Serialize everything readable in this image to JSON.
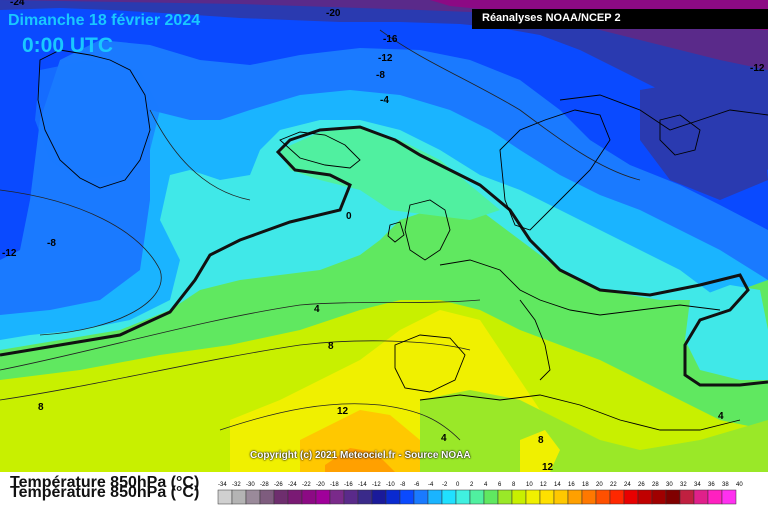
{
  "header": {
    "date": "Dimanche 18 février 2024",
    "time": "0:00 UTC",
    "source": "Réanalyses NOAA/NCEP 2"
  },
  "copyright": "Copyright (c) 2021 Meteociel.fr - Source NOAA",
  "footer": {
    "title": "Température 850hPa (°C)"
  },
  "contour_labels": [
    "-24",
    "-20",
    "-16",
    "-12",
    "-8",
    "-4",
    "-12",
    "-12",
    "-8",
    "0",
    "4",
    "8",
    "8",
    "12",
    "4",
    "8",
    "4",
    "12"
  ],
  "scale": {
    "labels": [
      "-34",
      "-32",
      "-30",
      "-28",
      "-26",
      "-24",
      "-22",
      "-20",
      "-18",
      "-16",
      "-14",
      "-12",
      "-10",
      "-8",
      "-6",
      "-4",
      "-2",
      "0",
      "2",
      "4",
      "6",
      "8",
      "10",
      "12",
      "14",
      "16",
      "18",
      "20",
      "22",
      "24",
      "26",
      "28",
      "30",
      "32",
      "34",
      "36",
      "38",
      "40"
    ],
    "colors": [
      "#d0d0d0",
      "#b4b4b4",
      "#9a8a9a",
      "#7e5c7e",
      "#6e2e6e",
      "#7a1a74",
      "#8c0a84",
      "#a0009a",
      "#7a2a8a",
      "#5a2a8a",
      "#3a2a8a",
      "#1a1a9a",
      "#0a2ad0",
      "#0a4aff",
      "#1a7aff",
      "#1ab4ff",
      "#20e0ff",
      "#40f0e0",
      "#50f0a0",
      "#60e860",
      "#9ae828",
      "#c8f000",
      "#f0f000",
      "#ffe000",
      "#ffc800",
      "#ffa000",
      "#ff7800",
      "#ff5000",
      "#ff2800",
      "#e80000",
      "#c00000",
      "#a00000",
      "#800000",
      "#c02040",
      "#e0208a",
      "#ff20c0",
      "#ff30f0"
    ]
  }
}
